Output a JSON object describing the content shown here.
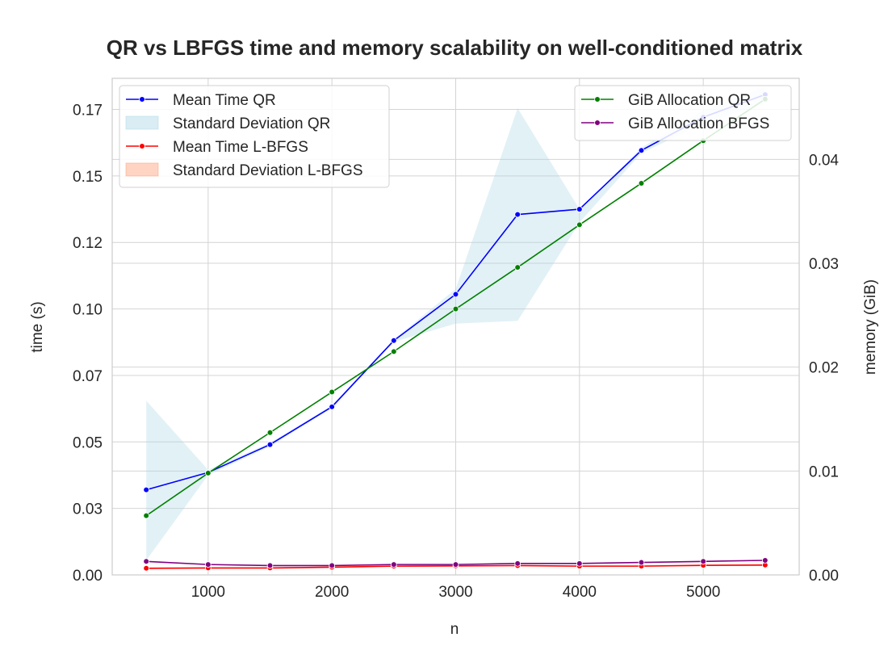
{
  "chart_data": {
    "type": "line",
    "title": "QR vs LBFGS time and memory scalability on well-conditioned matrix",
    "xlabel": "n",
    "ylabel_left": "time (s)",
    "ylabel_right": "memory (GiB)",
    "x": [
      500,
      1000,
      1500,
      2000,
      2500,
      3000,
      3500,
      4000,
      4500,
      5000,
      5500
    ],
    "xlim": [
      225,
      5775
    ],
    "ylim_left": [
      0,
      0.1867
    ],
    "ylim_right": [
      0,
      0.0478
    ],
    "x_ticks": [
      {
        "value": 1000,
        "label": "1000"
      },
      {
        "value": 2000,
        "label": "2000"
      },
      {
        "value": 3000,
        "label": "3000"
      },
      {
        "value": 4000,
        "label": "4000"
      },
      {
        "value": 5000,
        "label": "5000"
      }
    ],
    "y_ticks_left": [
      {
        "value": 0.0,
        "label": "0.00"
      },
      {
        "value": 0.025,
        "label": "0.03"
      },
      {
        "value": 0.05,
        "label": "0.05"
      },
      {
        "value": 0.075,
        "label": "0.07"
      },
      {
        "value": 0.1,
        "label": "0.10"
      },
      {
        "value": 0.125,
        "label": "0.12"
      },
      {
        "value": 0.15,
        "label": "0.15"
      },
      {
        "value": 0.175,
        "label": "0.17"
      }
    ],
    "y_ticks_right": [
      {
        "value": 0.0,
        "label": "0.00"
      },
      {
        "value": 0.01,
        "label": "0.01"
      },
      {
        "value": 0.02,
        "label": "0.02"
      },
      {
        "value": 0.03,
        "label": "0.03"
      },
      {
        "value": 0.04,
        "label": "0.04"
      }
    ],
    "grid": true,
    "bands": [
      {
        "name": "Standard Deviation QR",
        "axis": "left",
        "color": "#add8e6",
        "opacity": 0.35,
        "upper": [
          0.0655,
          0.0395,
          0.0497,
          0.0637,
          0.0886,
          0.1075,
          0.1755,
          0.1375,
          0.1606,
          0.1746,
          0.1836
        ],
        "lower": [
          0.0055,
          0.0375,
          0.0483,
          0.0627,
          0.0876,
          0.0945,
          0.0955,
          0.1325,
          0.1586,
          0.1696,
          0.1776
        ]
      },
      {
        "name": "Standard Deviation L-BFGS",
        "axis": "left",
        "color": "#ffa07a",
        "opacity": 0.35,
        "upper": [
          0.0028,
          0.0029,
          0.0029,
          0.0032,
          0.0036,
          0.0036,
          0.0038,
          0.0036,
          0.0036,
          0.0039,
          0.004
        ],
        "lower": [
          0.0022,
          0.0023,
          0.0023,
          0.0026,
          0.003,
          0.0031,
          0.0032,
          0.003,
          0.003,
          0.0033,
          0.0034
        ]
      }
    ],
    "series": [
      {
        "name": "Mean Time QR",
        "axis": "left",
        "color": "#0000ff",
        "values": [
          0.032,
          0.0385,
          0.049,
          0.0632,
          0.0881,
          0.1055,
          0.1355,
          0.1375,
          0.1596,
          0.1721,
          0.1806
        ]
      },
      {
        "name": "Mean Time L-BFGS",
        "axis": "left",
        "color": "#ff0000",
        "values": [
          0.0025,
          0.0026,
          0.0026,
          0.0029,
          0.0033,
          0.0034,
          0.0035,
          0.0033,
          0.0033,
          0.0036,
          0.0037
        ]
      },
      {
        "name": "GiB Allocation QR",
        "axis": "right",
        "color": "#008000",
        "values": [
          0.0057,
          0.0098,
          0.0137,
          0.0176,
          0.0215,
          0.0256,
          0.0296,
          0.0337,
          0.0377,
          0.0418,
          0.0458
        ]
      },
      {
        "name": "GiB Allocation BFGS",
        "axis": "right",
        "color": "#800080",
        "values": [
          0.0013,
          0.001,
          0.0009,
          0.0009,
          0.001,
          0.001,
          0.0011,
          0.0011,
          0.0012,
          0.0013,
          0.0014
        ]
      }
    ],
    "legend_left": {
      "position": "top-left",
      "entries": [
        {
          "label": "Mean Time QR",
          "kind": "line",
          "color": "#0000ff"
        },
        {
          "label": "Standard Deviation QR",
          "kind": "patch",
          "color": "#add8e6"
        },
        {
          "label": "Mean Time L-BFGS",
          "kind": "line",
          "color": "#ff0000"
        },
        {
          "label": "Standard Deviation L-BFGS",
          "kind": "patch",
          "color": "#ffa07a"
        }
      ]
    },
    "legend_right": {
      "position": "top-right",
      "entries": [
        {
          "label": "GiB Allocation QR",
          "kind": "line",
          "color": "#008000"
        },
        {
          "label": "GiB Allocation BFGS",
          "kind": "line",
          "color": "#800080"
        }
      ]
    }
  }
}
